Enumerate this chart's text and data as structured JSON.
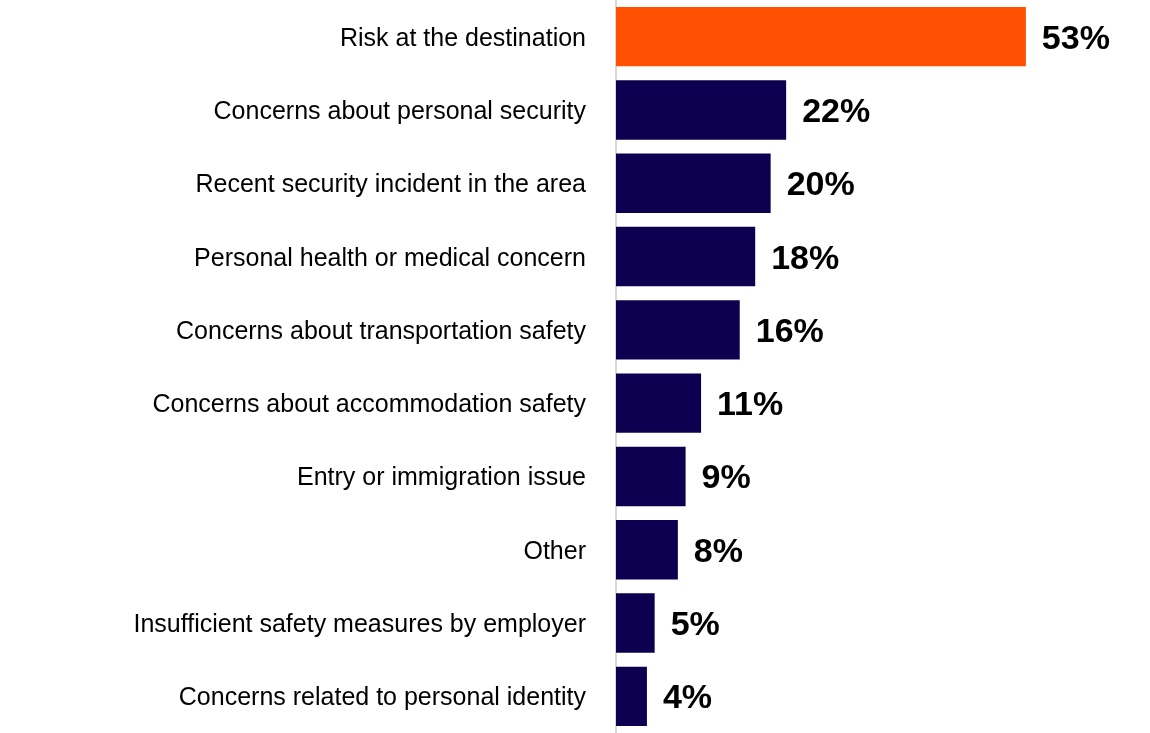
{
  "chart_data": {
    "type": "bar",
    "orientation": "horizontal",
    "categories": [
      "Risk at the destination",
      "Concerns about personal security",
      "Recent security incident in the area",
      "Personal health or medical concern",
      "Concerns about transportation safety",
      "Concerns about accommodation safety",
      "Entry or immigration issue",
      "Other",
      "Insufficient safety measures by employer",
      "Concerns related to personal identity"
    ],
    "values": [
      53,
      22,
      20,
      18,
      16,
      11,
      9,
      8,
      5,
      4
    ],
    "colors": [
      "#ff4f00",
      "#0e0050",
      "#0e0050",
      "#0e0050",
      "#0e0050",
      "#0e0050",
      "#0e0050",
      "#0e0050",
      "#0e0050",
      "#0e0050"
    ],
    "value_labels": [
      "53%",
      "22%",
      "20%",
      "18%",
      "16%",
      "11%",
      "9%",
      "8%",
      "5%",
      "4%"
    ]
  }
}
